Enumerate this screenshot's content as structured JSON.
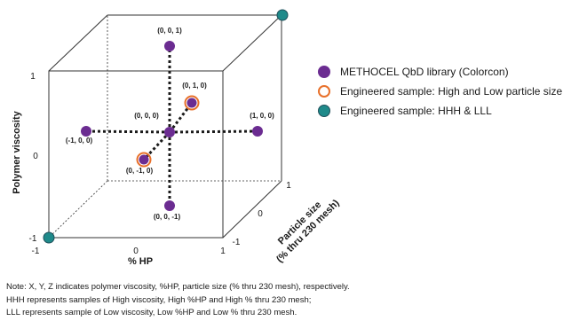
{
  "axes": {
    "x_title": "% HP",
    "y_title": "Polymer viscosity",
    "z_title_line1": "Particle size",
    "z_title_line2": "(% thru 230 mesh)",
    "x_ticks": [
      "-1",
      "0",
      "1"
    ],
    "y_ticks": [
      "-1",
      "0",
      "1"
    ],
    "z_ticks": [
      "-1",
      "0",
      "1"
    ]
  },
  "points": [
    {
      "label": "(0, 0, 0)",
      "coords": [
        0,
        0,
        0
      ],
      "group": "library"
    },
    {
      "label": "(0, 0, 1)",
      "coords": [
        0,
        0,
        1
      ],
      "group": "library"
    },
    {
      "label": "(0, 0, -1)",
      "coords": [
        0,
        0,
        -1
      ],
      "group": "library"
    },
    {
      "label": "(1, 0, 0)",
      "coords": [
        1,
        0,
        0
      ],
      "group": "library"
    },
    {
      "label": "(-1, 0, 0)",
      "coords": [
        -1,
        0,
        0
      ],
      "group": "library"
    },
    {
      "label": "(0, 1, 0)",
      "coords": [
        0,
        1,
        0
      ],
      "group": "particle"
    },
    {
      "label": "(0, -1, 0)",
      "coords": [
        0,
        -1,
        0
      ],
      "group": "particle"
    },
    {
      "label": "",
      "coords": [
        1,
        1,
        1
      ],
      "group": "hhh_lll"
    },
    {
      "label": "",
      "coords": [
        -1,
        -1,
        -1
      ],
      "group": "hhh_lll"
    }
  ],
  "legend": [
    {
      "label": "METHOCEL QbD library (Colorcon)",
      "marker": "filled",
      "color": "#6b2c91"
    },
    {
      "label": "Engineered sample: High and Low particle size",
      "marker": "ring",
      "color": "#e8702a"
    },
    {
      "label": "Engineered sample: HHH & LLL",
      "marker": "teal",
      "color": "#1f8a8a"
    }
  ],
  "colors": {
    "library": "#6b2c91",
    "ring": "#e8702a",
    "teal": "#1f8a8a",
    "teal_edge": "#1f4f5a"
  },
  "note": [
    "Note: X, Y, Z indicates polymer viscosity, %HP, particle size (% thru 230 mesh), respectively.",
    "HHH represents samples of High viscosity, High %HP and High % thru 230 mesh;",
    "LLL represents sample of Low viscosity, Low %HP and Low % thru 230 mesh."
  ]
}
